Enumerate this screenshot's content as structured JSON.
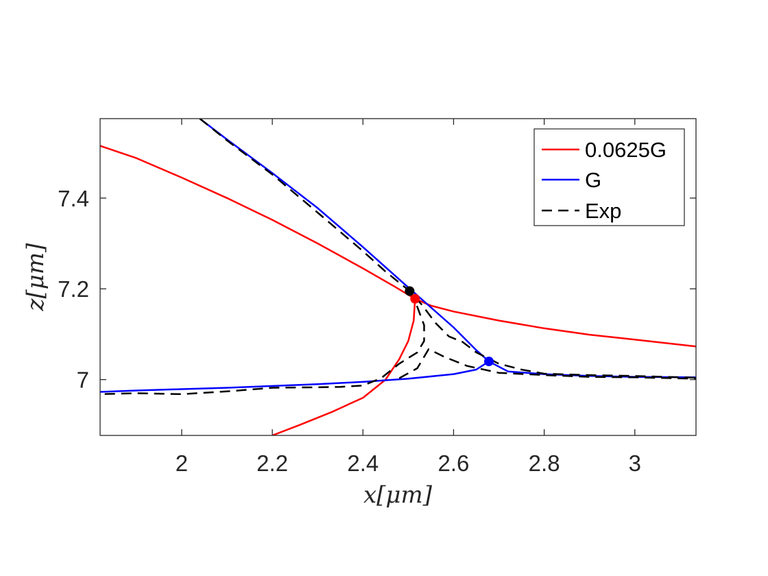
{
  "chart_data": {
    "type": "line",
    "xlabel": "x[μm]",
    "ylabel": "z[μm]",
    "xlim": [
      1.82,
      3.135
    ],
    "ylim": [
      6.877,
      7.575
    ],
    "xticks": [
      2,
      2.2,
      2.4,
      2.6,
      2.8,
      3
    ],
    "xtick_labels": [
      "2",
      "2.2",
      "2.4",
      "2.6",
      "2.8",
      "3"
    ],
    "yticks": [
      7,
      7.2,
      7.4
    ],
    "ytick_labels": [
      "7",
      "7.2",
      "7.4"
    ],
    "grid": false,
    "legend_position": "top-right",
    "series": [
      {
        "name": "0.0625G",
        "color": "#ff0000",
        "style": "solid",
        "segments": [
          [
            [
              1.82,
              7.515
            ],
            [
              1.9,
              7.488
            ],
            [
              2.0,
              7.445
            ],
            [
              2.1,
              7.4
            ],
            [
              2.2,
              7.352
            ],
            [
              2.3,
              7.3
            ],
            [
              2.4,
              7.245
            ],
            [
              2.47,
              7.205
            ],
            [
              2.515,
              7.178
            ],
            [
              2.55,
              7.163
            ],
            [
              2.6,
              7.15
            ],
            [
              2.7,
              7.13
            ],
            [
              2.8,
              7.113
            ],
            [
              2.9,
              7.099
            ],
            [
              3.0,
              7.088
            ],
            [
              3.135,
              7.073
            ]
          ],
          [
            [
              2.515,
              7.178
            ],
            [
              2.512,
              7.13
            ],
            [
              2.5,
              7.085
            ],
            [
              2.48,
              7.045
            ],
            [
              2.45,
              7.0
            ],
            [
              2.4,
              6.96
            ],
            [
              2.33,
              6.928
            ],
            [
              2.26,
              6.9
            ],
            [
              2.2,
              6.877
            ]
          ]
        ]
      },
      {
        "name": "G",
        "color": "#0000ff",
        "style": "solid",
        "segments": [
          [
            [
              2.04,
              7.575
            ],
            [
              2.1,
              7.529
            ],
            [
              2.2,
              7.455
            ],
            [
              2.3,
              7.378
            ],
            [
              2.4,
              7.292
            ],
            [
              2.5,
              7.203
            ],
            [
              2.6,
              7.115
            ],
            [
              2.65,
              7.065
            ],
            [
              2.678,
              7.04
            ],
            [
              2.72,
              7.018
            ],
            [
              2.8,
              7.012
            ],
            [
              2.9,
              7.008
            ],
            [
              3.0,
              7.006
            ],
            [
              3.135,
              7.005
            ]
          ],
          [
            [
              1.82,
              6.973
            ],
            [
              1.9,
              6.976
            ],
            [
              2.0,
              6.979
            ],
            [
              2.1,
              6.982
            ],
            [
              2.2,
              6.986
            ],
            [
              2.3,
              6.99
            ],
            [
              2.4,
              6.995
            ],
            [
              2.5,
              7.002
            ],
            [
              2.6,
              7.012
            ],
            [
              2.65,
              7.022
            ],
            [
              2.678,
              7.04
            ]
          ]
        ]
      },
      {
        "name": "Exp",
        "color": "#000000",
        "style": "dashed",
        "segments": [
          [
            [
              2.04,
              7.575
            ],
            [
              2.1,
              7.527
            ],
            [
              2.2,
              7.452
            ],
            [
              2.3,
              7.368
            ],
            [
              2.4,
              7.283
            ],
            [
              2.45,
              7.238
            ],
            [
              2.503,
              7.195
            ],
            [
              2.53,
              7.165
            ],
            [
              2.56,
              7.125
            ],
            [
              2.59,
              7.095
            ],
            [
              2.62,
              7.083
            ],
            [
              2.65,
              7.06
            ],
            [
              2.7,
              7.035
            ],
            [
              2.75,
              7.022
            ],
            [
              2.8,
              7.013
            ],
            [
              2.9,
              7.01
            ],
            [
              3.0,
              7.008
            ],
            [
              3.135,
              7.004
            ]
          ],
          [
            [
              2.503,
              7.195
            ],
            [
              2.52,
              7.16
            ],
            [
              2.535,
              7.12
            ],
            [
              2.535,
              7.085
            ],
            [
              2.52,
              7.06
            ],
            [
              2.48,
              7.035
            ],
            [
              2.44,
              7.003
            ],
            [
              2.4,
              6.987
            ],
            [
              2.35,
              6.984
            ],
            [
              2.3,
              6.983
            ],
            [
              2.2,
              6.982
            ],
            [
              2.1,
              6.974
            ],
            [
              2.0,
              6.968
            ],
            [
              1.9,
              6.97
            ],
            [
              1.82,
              6.968
            ]
          ],
          [
            [
              2.48,
              7.003
            ],
            [
              2.52,
              7.025
            ],
            [
              2.545,
              7.067
            ],
            [
              2.58,
              7.05
            ],
            [
              2.63,
              7.03
            ],
            [
              2.7,
              7.015
            ],
            [
              2.8,
              7.01
            ],
            [
              2.9,
              7.006
            ],
            [
              3.0,
              7.005
            ],
            [
              3.135,
              7.002
            ]
          ]
        ]
      }
    ],
    "markers": [
      {
        "x": 2.503,
        "y": 7.195,
        "color": "#000000"
      },
      {
        "x": 2.515,
        "y": 7.178,
        "color": "#ff0000"
      },
      {
        "x": 2.678,
        "y": 7.04,
        "color": "#0000ff"
      }
    ]
  }
}
